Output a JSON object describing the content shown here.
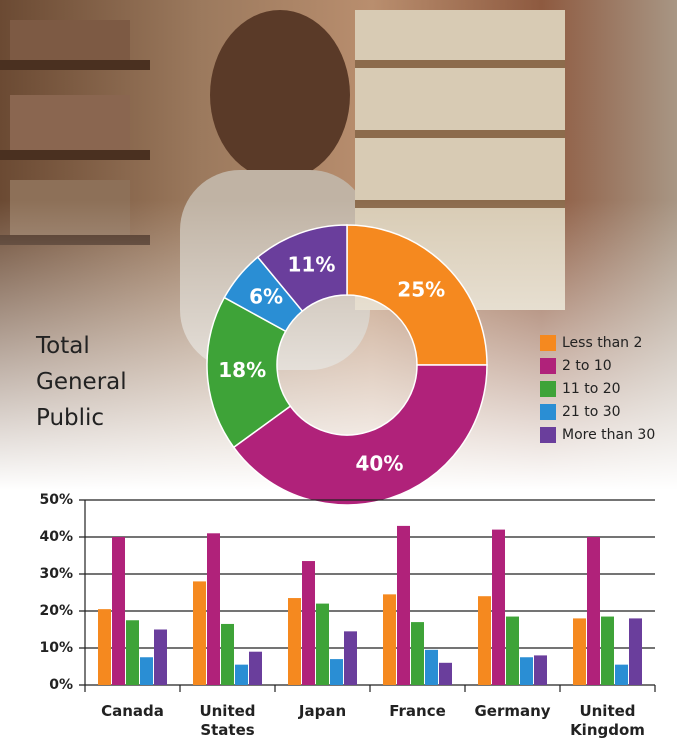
{
  "chart_data": [
    {
      "type": "donut",
      "title": "Total General Public",
      "values": [
        25,
        40,
        18,
        6,
        11
      ],
      "value_labels": [
        "25%",
        "40%",
        "18%",
        "6%",
        "11%"
      ],
      "colors": [
        "#f5891f",
        "#b0227a",
        "#3ea338",
        "#2a8ed4",
        "#6a3e9c"
      ]
    },
    {
      "type": "bar",
      "categories": [
        "Canada",
        "United States",
        "Japan",
        "France",
        "Germany",
        "United Kingdom"
      ],
      "series": [
        {
          "name": "Less than 2",
          "color": "#f5891f",
          "values": [
            20.5,
            28,
            23.5,
            24.5,
            24,
            18
          ]
        },
        {
          "name": "2 to 10",
          "color": "#b0227a",
          "values": [
            40,
            41,
            33.5,
            43,
            42,
            40
          ]
        },
        {
          "name": "11 to 20",
          "color": "#3ea338",
          "values": [
            17.5,
            16.5,
            22,
            17,
            18.5,
            18.5
          ]
        },
        {
          "name": "21 to 30",
          "color": "#2a8ed4",
          "values": [
            7.5,
            5.5,
            7,
            9.5,
            7.5,
            5.5
          ]
        },
        {
          "name": "More than 30",
          "color": "#6a3e9c",
          "values": [
            15,
            9,
            14.5,
            6,
            8,
            18
          ]
        }
      ],
      "ylim": [
        0,
        50
      ],
      "yticks": [
        {
          "value": 0,
          "label": "0%"
        },
        {
          "value": 10,
          "label": "10%"
        },
        {
          "value": 20,
          "label": "20%"
        },
        {
          "value": 30,
          "label": "30%"
        },
        {
          "value": 40,
          "label": "40%"
        },
        {
          "value": 50,
          "label": "50%"
        }
      ],
      "grid": true
    }
  ]
}
